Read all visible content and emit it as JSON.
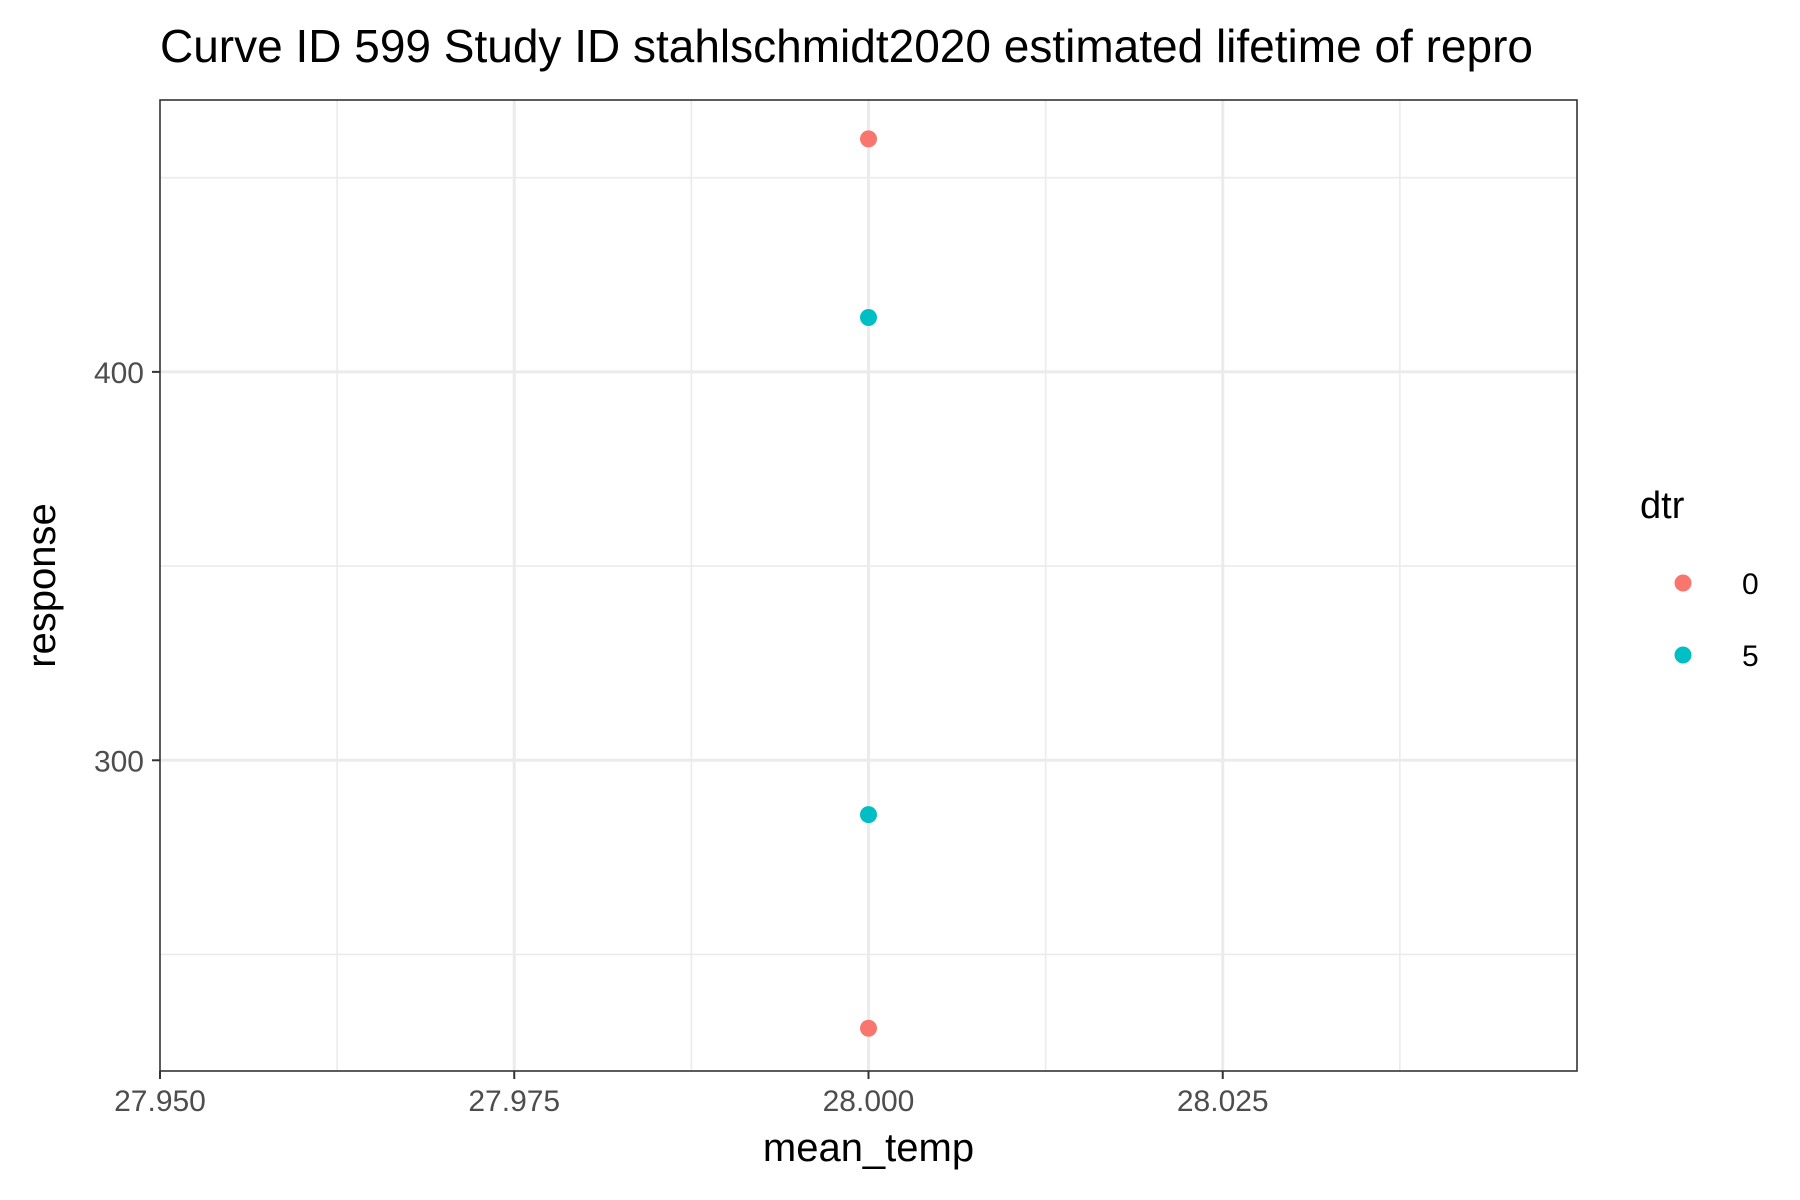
{
  "chart_data": {
    "type": "scatter",
    "title": "Curve ID 599 Study ID stahlschmidt2020 estimated lifetime of repro",
    "xlabel": "mean_temp",
    "ylabel": "response",
    "xlim": [
      27.95,
      28.05
    ],
    "ylim": [
      220,
      470
    ],
    "x_ticks": [
      27.95,
      27.975,
      28.0,
      28.025
    ],
    "x_tick_labels": [
      "27.950",
      "27.975",
      "28.000",
      "28.025"
    ],
    "y_ticks": [
      300,
      400
    ],
    "y_tick_labels": [
      "300",
      "400"
    ],
    "grid": true,
    "legend": {
      "title": "dtr",
      "placement": "right",
      "entries": [
        {
          "label": "0",
          "color": "#F8766D"
        },
        {
          "label": "5",
          "color": "#00BFC4"
        }
      ]
    },
    "series": [
      {
        "name": "0",
        "color": "#F8766D",
        "points": [
          {
            "x": 28.0,
            "y": 460
          },
          {
            "x": 28.0,
            "y": 231
          }
        ]
      },
      {
        "name": "5",
        "color": "#00BFC4",
        "points": [
          {
            "x": 28.0,
            "y": 414
          },
          {
            "x": 28.0,
            "y": 286
          }
        ]
      }
    ]
  }
}
